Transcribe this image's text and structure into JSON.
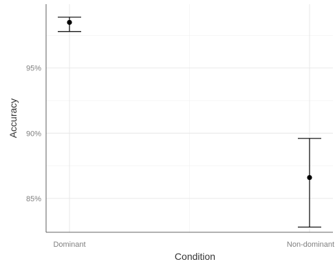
{
  "chart_data": {
    "type": "scatter",
    "categories": [
      "Dominant",
      "Non-dominant"
    ],
    "points": [
      {
        "category": "Dominant",
        "y": 98.5,
        "ymin": 97.8,
        "ymax": 98.9
      },
      {
        "category": "Non-dominant",
        "y": 86.6,
        "ymin": 82.8,
        "ymax": 89.6
      }
    ],
    "title": "",
    "xlabel": "Condition",
    "ylabel": "Accuracy",
    "ylim": [
      82.4,
      99.9
    ],
    "yticks": [
      85,
      90,
      95
    ],
    "ytick_labels": [
      "85%",
      "90%",
      "95%"
    ],
    "grid": true,
    "colors": {
      "point": "#000000",
      "grid": "#ebebeb",
      "text": "#7f7f7f"
    }
  }
}
